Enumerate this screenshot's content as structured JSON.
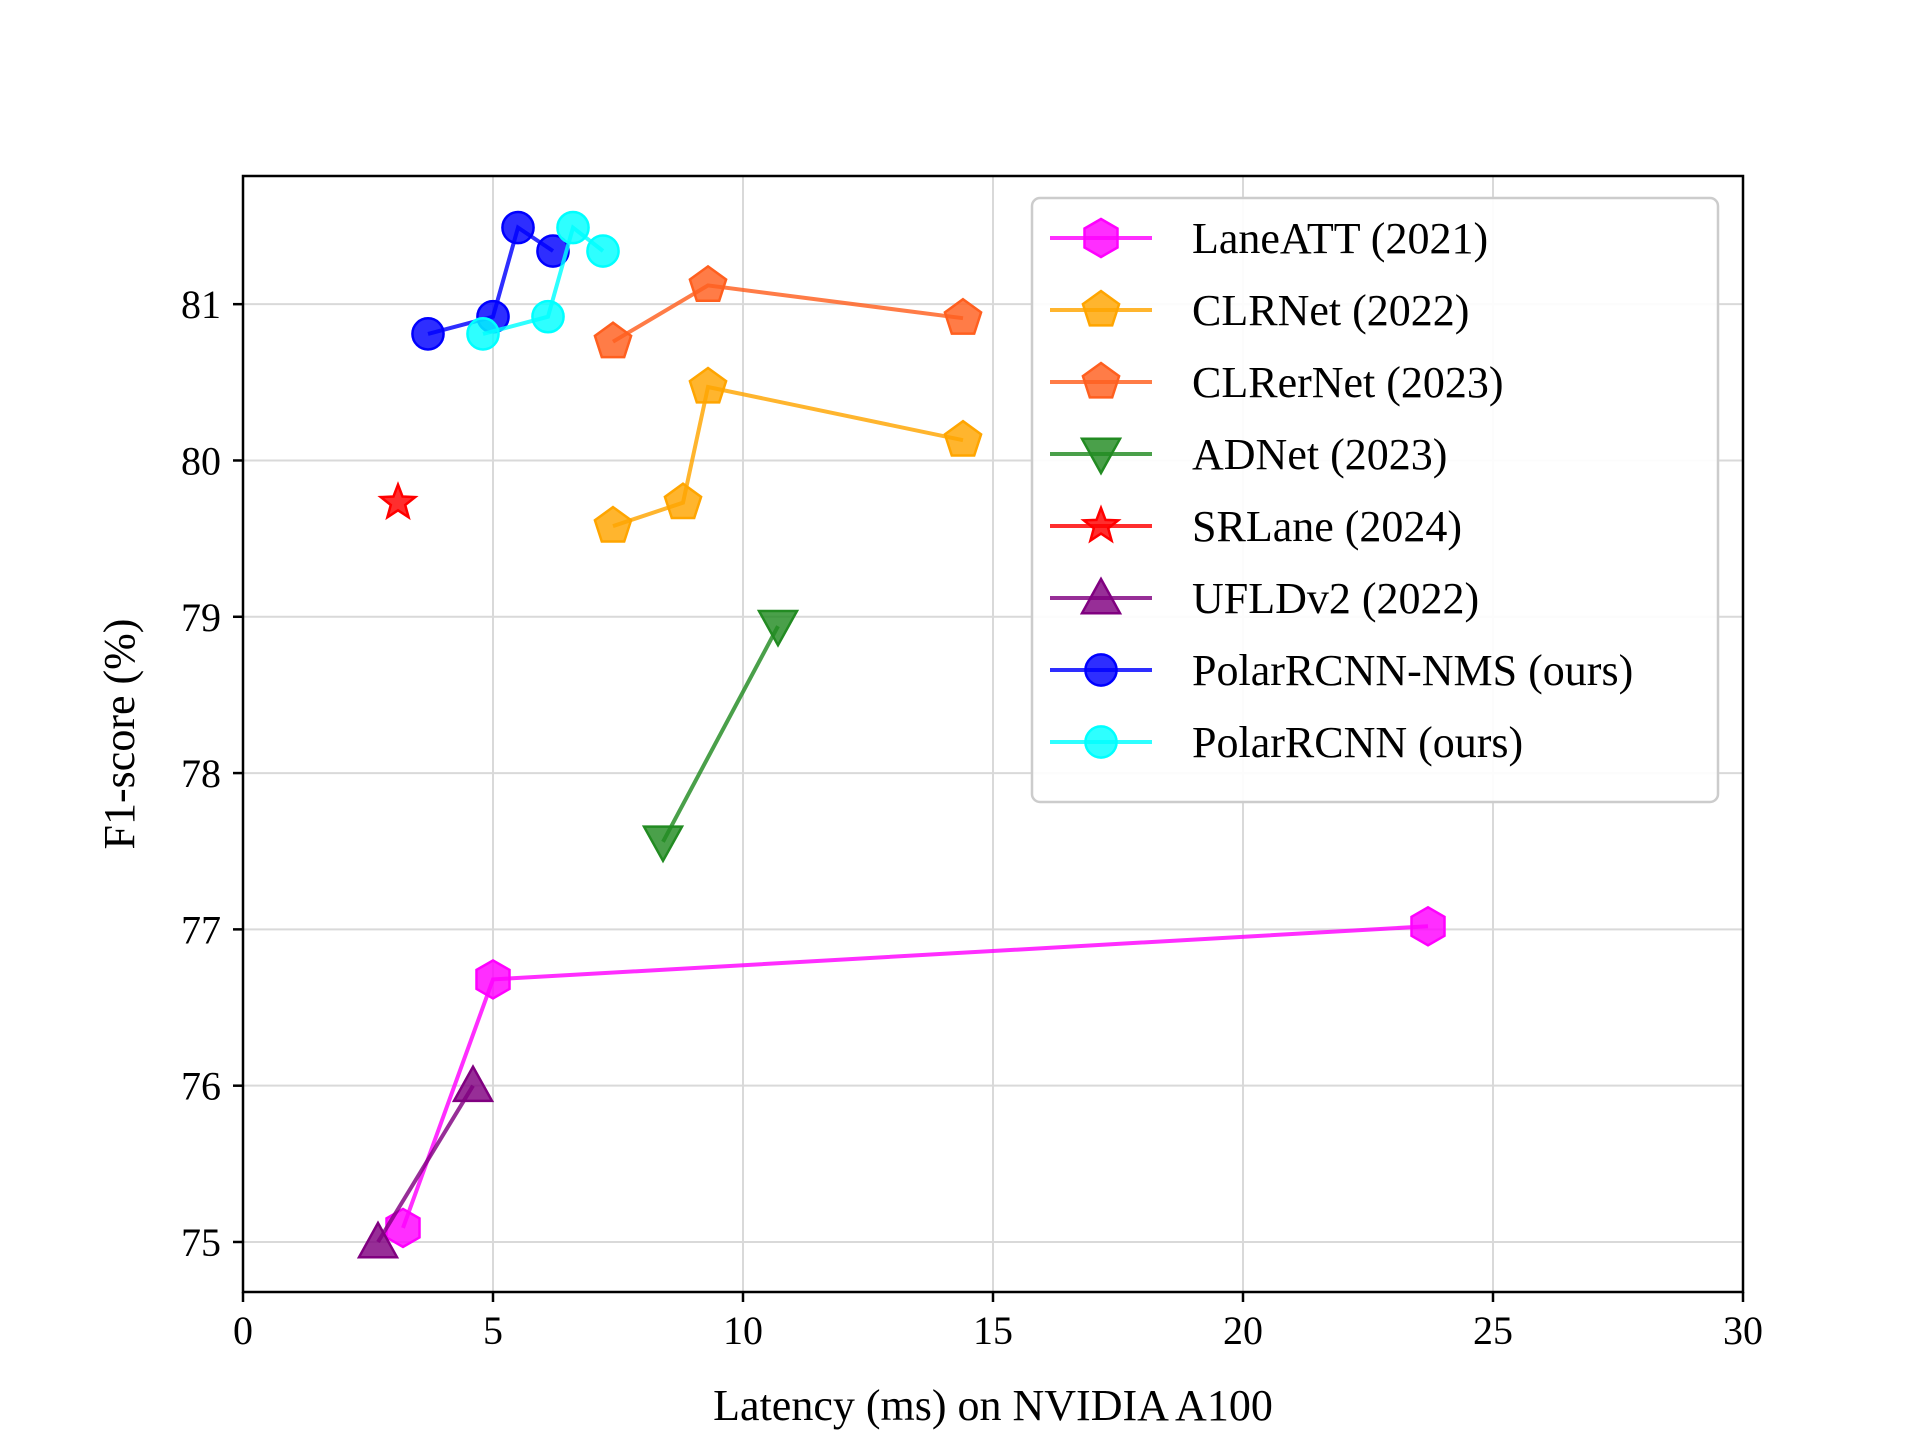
{
  "chart_data": {
    "type": "line",
    "title": "",
    "xlabel": "Latency (ms) on NVIDIA A100",
    "ylabel": "F1-score (%)",
    "xlim": [
      0,
      30
    ],
    "ylim": [
      74.68,
      81.82
    ],
    "xticks": [
      0,
      5,
      10,
      15,
      20,
      25,
      30
    ],
    "yticks": [
      75,
      76,
      77,
      78,
      79,
      80,
      81
    ],
    "grid": true,
    "legend_position": "top-right",
    "series": [
      {
        "name": "LaneATT (2021)",
        "color": "#ff00ff",
        "marker": "hexagon",
        "points": [
          {
            "x": 3.2,
            "y": 75.09
          },
          {
            "x": 5.0,
            "y": 76.68
          },
          {
            "x": 23.7,
            "y": 77.02
          }
        ]
      },
      {
        "name": "CLRNet (2022)",
        "color": "#ffa500",
        "marker": "pentagon",
        "points": [
          {
            "x": 7.4,
            "y": 79.58
          },
          {
            "x": 8.8,
            "y": 79.73
          },
          {
            "x": 9.3,
            "y": 80.47
          },
          {
            "x": 14.4,
            "y": 80.13
          }
        ]
      },
      {
        "name": "CLRerNet (2023)",
        "color": "#ff5f1f",
        "marker": "pentagon",
        "points": [
          {
            "x": 7.4,
            "y": 80.76
          },
          {
            "x": 9.3,
            "y": 81.12
          },
          {
            "x": 14.4,
            "y": 80.91
          }
        ]
      },
      {
        "name": "ADNet (2023)",
        "color": "#228b22",
        "marker": "triangle-down",
        "points": [
          {
            "x": 8.4,
            "y": 77.56
          },
          {
            "x": 10.7,
            "y": 78.94
          }
        ]
      },
      {
        "name": "SRLane (2024)",
        "color": "#ff0000",
        "marker": "star",
        "points": [
          {
            "x": 3.1,
            "y": 79.73
          }
        ]
      },
      {
        "name": "UFLDv2 (2022)",
        "color": "#800080",
        "marker": "triangle-up",
        "points": [
          {
            "x": 2.7,
            "y": 75.0
          },
          {
            "x": 4.6,
            "y": 76.0
          }
        ]
      },
      {
        "name": "PolarRCNN-NMS (ours)",
        "color": "#0000ff",
        "marker": "circle",
        "points": [
          {
            "x": 3.7,
            "y": 80.81
          },
          {
            "x": 5.0,
            "y": 80.92
          },
          {
            "x": 5.5,
            "y": 81.49
          },
          {
            "x": 6.2,
            "y": 81.34
          }
        ]
      },
      {
        "name": "PolarRCNN (ours)",
        "color": "#00ffff",
        "marker": "circle",
        "points": [
          {
            "x": 4.8,
            "y": 80.81
          },
          {
            "x": 6.1,
            "y": 80.92
          },
          {
            "x": 6.6,
            "y": 81.49
          },
          {
            "x": 7.2,
            "y": 81.34
          }
        ]
      }
    ]
  }
}
